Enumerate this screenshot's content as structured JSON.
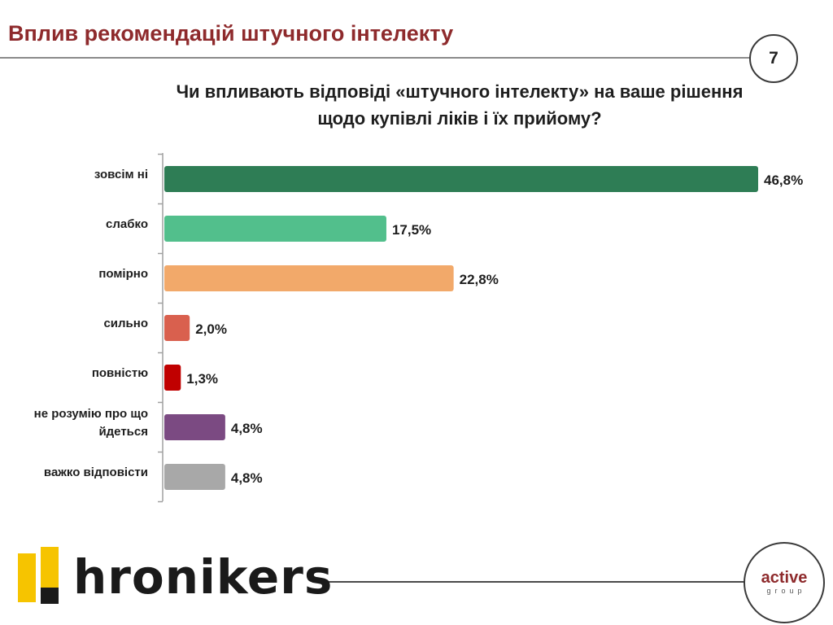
{
  "slide": {
    "title": "Вплив рекомендацій штучного інтелекту",
    "page_number": "7",
    "question_line1": "Чи впливають відповіді «штучного інтелекту» на ваше рішення",
    "question_line2": "щодо купівлі ліків і їх прийому?"
  },
  "chart_data": {
    "type": "bar",
    "orientation": "horizontal",
    "title": "",
    "xlabel": "",
    "ylabel": "",
    "grid": false,
    "legend": "none",
    "xlim": [
      0,
      50
    ],
    "categories": [
      [
        "зовсім ні"
      ],
      [
        "слабко"
      ],
      [
        "помірно"
      ],
      [
        "сильно"
      ],
      [
        "повністю"
      ],
      [
        "не розумію про що",
        "йдеться"
      ],
      [
        "важко відповісти"
      ]
    ],
    "values": [
      46.8,
      17.5,
      22.8,
      2.0,
      1.3,
      4.8,
      4.8
    ],
    "data_labels": [
      "46,8%",
      "17,5%",
      "22,8%",
      "2,0%",
      "1,3%",
      "4,8%",
      "4,8%"
    ],
    "colors": [
      "#2e7d55",
      "#52bf8c",
      "#f2a96a",
      "#d9604e",
      "#c00000",
      "#7b4a82",
      "#a8a8a8"
    ]
  },
  "footer": {
    "brand_left": "hronikers",
    "brand_right_word": "active",
    "brand_right_sub": "group",
    "logo_colors": [
      "#f6c400",
      "#1a1a1a"
    ]
  }
}
